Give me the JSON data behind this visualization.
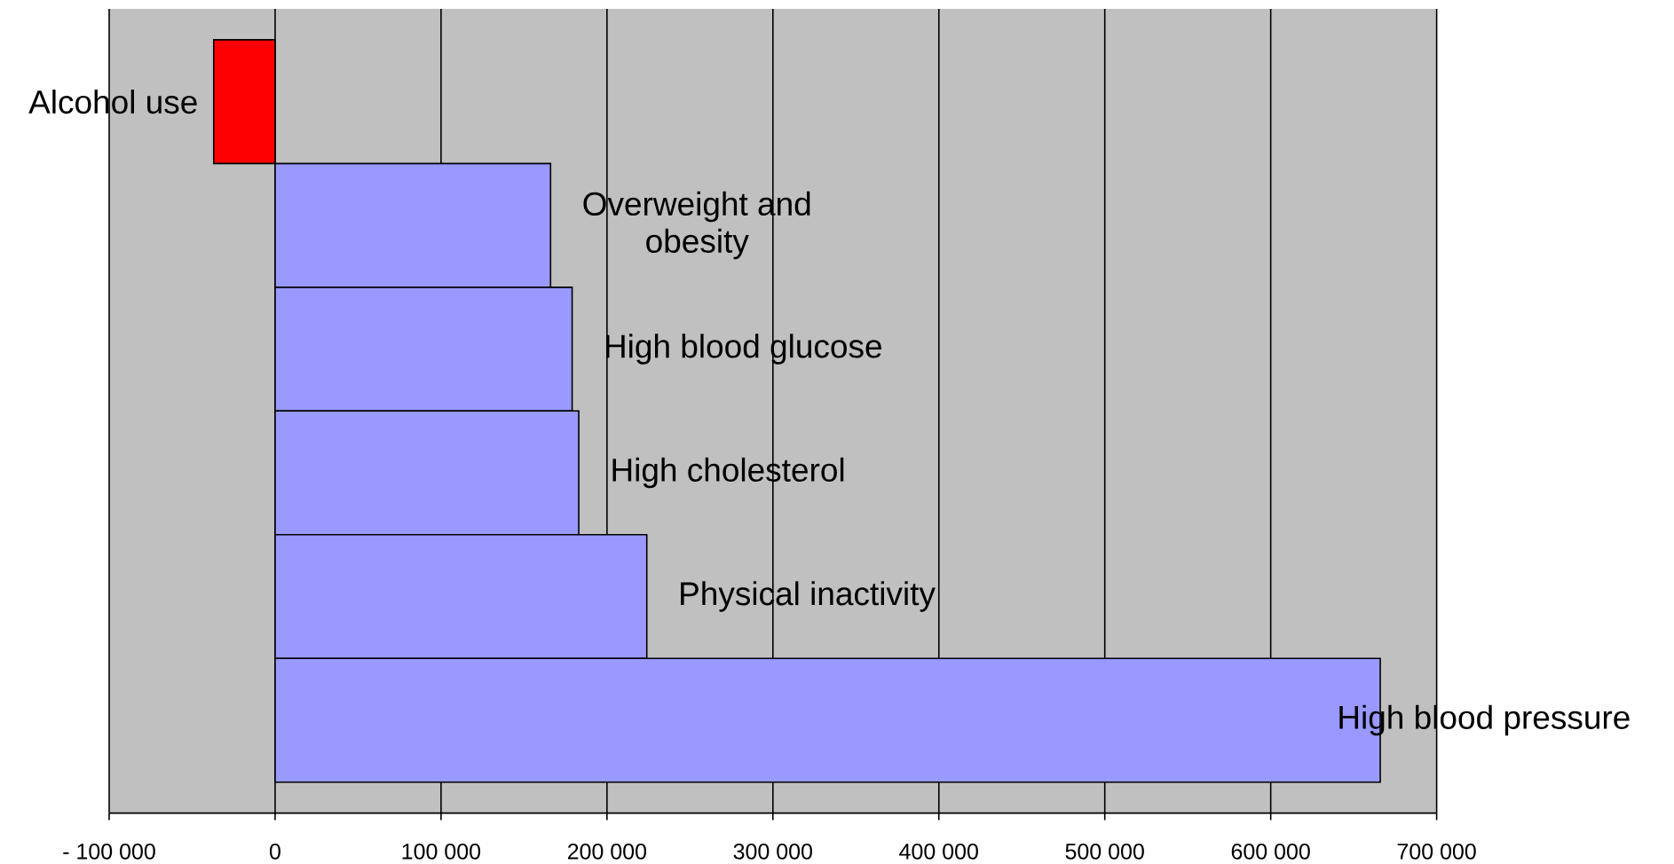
{
  "chart_data": {
    "type": "bar",
    "orientation": "horizontal",
    "categories": [
      "Alcohol use",
      "Overweight and obesity",
      "High blood glucose",
      "High cholesterol",
      "Physical inactivity",
      "High blood pressure"
    ],
    "values": [
      -37000,
      166000,
      179000,
      183000,
      224000,
      666000
    ],
    "colors": [
      "#ff0000",
      "#9999ff",
      "#9999ff",
      "#9999ff",
      "#9999ff",
      "#9999ff"
    ],
    "xlim": [
      -100000,
      700000
    ],
    "xticks": [
      {
        "value": -100000,
        "label": "- 100 000"
      },
      0,
      {
        "value": 100000,
        "label": "100 000"
      },
      {
        "value": 200000,
        "label": "200 000"
      },
      {
        "value": 300000,
        "label": "300 000"
      },
      {
        "value": 400000,
        "label": "400 000"
      },
      {
        "value": 500000,
        "label": "500 000"
      },
      {
        "value": 600000,
        "label": "600 000"
      },
      {
        "value": 700000,
        "label": "700 000"
      }
    ],
    "grid": "x"
  }
}
